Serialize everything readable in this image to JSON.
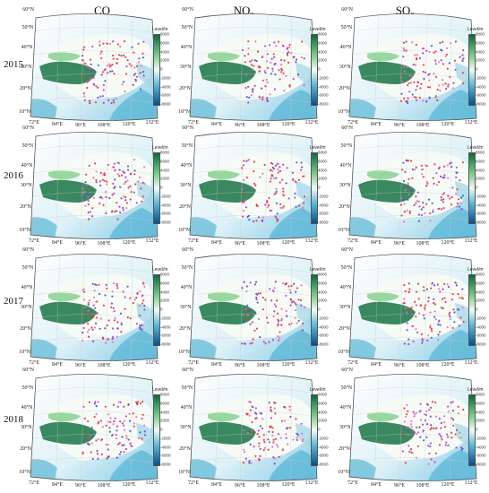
{
  "columns": [
    {
      "main": "CO",
      "sub": ""
    },
    {
      "main": "NO",
      "sub": "2"
    },
    {
      "main": "SO",
      "sub": "2"
    }
  ],
  "rows": [
    "2015",
    "2016",
    "2017",
    "2018"
  ],
  "map": {
    "latitude_labels": [
      "60°N",
      "50°N",
      "40°N",
      "30°N",
      "20°N",
      "10°N"
    ],
    "longitude_labels": [
      "72°E",
      "84°E",
      "96°E",
      "108°E",
      "120°E",
      "132°E"
    ]
  },
  "colorbar": {
    "title": "Level/m",
    "ticks": [
      "8000",
      "6000",
      "4000",
      "2000",
      "0",
      "-2000",
      "-4000",
      "-6000",
      "-8000"
    ],
    "colors": {
      "high": "#0b6b3a",
      "mid_high": "#7fcf8a",
      "zero": "#f2f8f4",
      "mid_low": "#5ab7d6",
      "low": "#0a4f8a"
    }
  },
  "marker_colors": {
    "red": "#e8323c",
    "pink": "#f06ab0",
    "purple": "#7b3fd0",
    "blue": "#2f59d9",
    "magenta": "#c03ad0"
  }
}
